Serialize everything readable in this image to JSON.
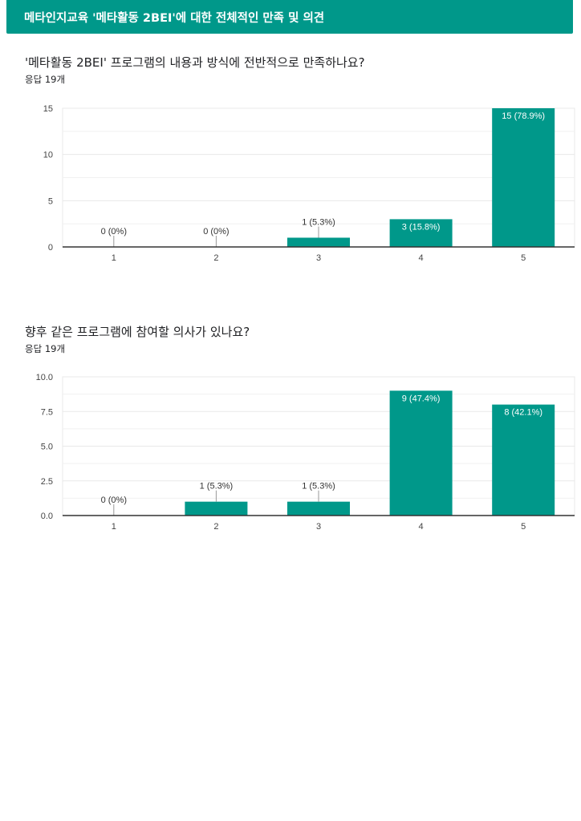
{
  "header": {
    "title": "메타인지교육 '메타활동 2BEI'에 대한 전체적인 만족 및 의견"
  },
  "questions": [
    {
      "title": "'메타활동 2BEI' 프로그램의 내용과 방식에 전반적으로 만족하나요?",
      "responses": "응답 19개"
    },
    {
      "title": "향후 같은 프로그램에 참여할 의사가 있나요?",
      "responses": "응답 19개"
    }
  ],
  "colors": {
    "bar": "#00988a",
    "header": "#00988a",
    "grid": "#e8e8e8",
    "axis": "#333333"
  },
  "chart_data": [
    {
      "type": "bar",
      "categories": [
        "1",
        "2",
        "3",
        "4",
        "5"
      ],
      "values": [
        0,
        0,
        1,
        3,
        15
      ],
      "data_labels": [
        "0 (0%)",
        "0 (0%)",
        "1 (5.3%)",
        "3 (15.8%)",
        "15 (78.9%)"
      ],
      "yticks": [
        "0",
        "5",
        "10",
        "15"
      ],
      "ylim": [
        0,
        15
      ],
      "minor_grid": true,
      "title": "",
      "xlabel": "",
      "ylabel": ""
    },
    {
      "type": "bar",
      "categories": [
        "1",
        "2",
        "3",
        "4",
        "5"
      ],
      "values": [
        0,
        1,
        1,
        9,
        8
      ],
      "data_labels": [
        "0 (0%)",
        "1 (5.3%)",
        "1 (5.3%)",
        "9 (47.4%)",
        "8 (42.1%)"
      ],
      "yticks": [
        "0.0",
        "2.5",
        "5.0",
        "7.5",
        "10.0"
      ],
      "ylim": [
        0,
        10
      ],
      "minor_grid": true,
      "title": "",
      "xlabel": "",
      "ylabel": ""
    }
  ]
}
